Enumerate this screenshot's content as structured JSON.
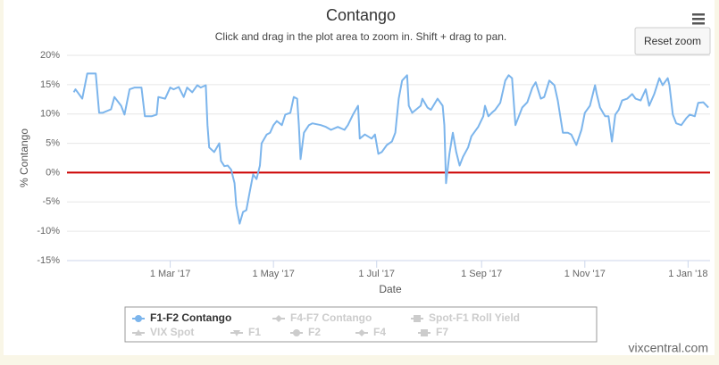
{
  "chart_data": {
    "type": "line",
    "title": "Contango",
    "subtitle": "Click and drag in the plot area to zoom in. Shift + drag to pan.",
    "y_label": "% Contango",
    "x_label": "Date",
    "reset_button": "Reset zoom",
    "credits": "vixcentral.com",
    "grid": true,
    "xlim": [
      "2016-12-30",
      "2018-01-14"
    ],
    "xticks": [
      {
        "value": "2017-03-01",
        "label": "1 Mar '17"
      },
      {
        "value": "2017-05-01",
        "label": "1 May '17"
      },
      {
        "value": "2017-07-01",
        "label": "1 Jul '17"
      },
      {
        "value": "2017-09-01",
        "label": "1 Sep '17"
      },
      {
        "value": "2017-11-01",
        "label": "1 Nov '17"
      },
      {
        "value": "2018-01-01",
        "label": "1 Jan '18"
      }
    ],
    "ylim": [
      -15,
      20
    ],
    "yticks": [
      {
        "value": -15,
        "label": "-15%"
      },
      {
        "value": -10,
        "label": "-10%"
      },
      {
        "value": -5,
        "label": "-5%"
      },
      {
        "value": 0,
        "label": "0%"
      },
      {
        "value": 5,
        "label": "5%"
      },
      {
        "value": 10,
        "label": "10%"
      },
      {
        "value": 15,
        "label": "15%"
      },
      {
        "value": 20,
        "label": "20%"
      }
    ],
    "reference_line": {
      "value": 0,
      "color": "#cc0000"
    },
    "x": [
      "2017-01-03",
      "2017-01-04",
      "2017-01-08",
      "2017-01-11",
      "2017-01-16",
      "2017-01-18",
      "2017-01-20",
      "2017-01-25",
      "2017-01-27",
      "2017-01-31",
      "2017-02-02",
      "2017-02-05",
      "2017-02-08",
      "2017-02-12",
      "2017-02-14",
      "2017-02-18",
      "2017-02-21",
      "2017-02-22",
      "2017-02-26",
      "2017-03-01",
      "2017-03-03",
      "2017-03-06",
      "2017-03-09",
      "2017-03-11",
      "2017-03-14",
      "2017-03-17",
      "2017-03-19",
      "2017-03-22",
      "2017-03-23",
      "2017-03-24",
      "2017-03-27",
      "2017-03-30",
      "2017-03-31",
      "2017-04-02",
      "2017-04-04",
      "2017-04-06",
      "2017-04-08",
      "2017-04-09",
      "2017-04-11",
      "2017-04-13",
      "2017-04-15",
      "2017-04-17",
      "2017-04-19",
      "2017-04-21",
      "2017-04-23",
      "2017-04-24",
      "2017-04-27",
      "2017-04-29",
      "2017-05-01",
      "2017-05-03",
      "2017-05-06",
      "2017-05-08",
      "2017-05-11",
      "2017-05-13",
      "2017-05-15",
      "2017-05-16",
      "2017-05-17",
      "2017-05-19",
      "2017-05-22",
      "2017-05-24",
      "2017-05-29",
      "2017-06-01",
      "2017-06-04",
      "2017-06-08",
      "2017-06-12",
      "2017-06-14",
      "2017-06-17",
      "2017-06-20",
      "2017-06-21",
      "2017-06-24",
      "2017-06-28",
      "2017-06-30",
      "2017-07-02",
      "2017-07-04",
      "2017-07-07",
      "2017-07-10",
      "2017-07-12",
      "2017-07-14",
      "2017-07-16",
      "2017-07-19",
      "2017-07-20",
      "2017-07-22",
      "2017-07-27",
      "2017-07-28",
      "2017-07-31",
      "2017-08-02",
      "2017-08-06",
      "2017-08-09",
      "2017-08-10",
      "2017-08-11",
      "2017-08-13",
      "2017-08-15",
      "2017-08-17",
      "2017-08-19",
      "2017-08-21",
      "2017-08-24",
      "2017-08-26",
      "2017-08-30",
      "2017-09-02",
      "2017-09-03",
      "2017-09-05",
      "2017-09-07",
      "2017-09-09",
      "2017-09-12",
      "2017-09-15",
      "2017-09-17",
      "2017-09-19",
      "2017-09-21",
      "2017-09-23",
      "2017-09-25",
      "2017-09-28",
      "2017-10-01",
      "2017-10-03",
      "2017-10-06",
      "2017-10-08",
      "2017-10-11",
      "2017-10-14",
      "2017-10-16",
      "2017-10-19",
      "2017-10-22",
      "2017-10-24",
      "2017-10-27",
      "2017-10-30",
      "2017-11-01",
      "2017-11-04",
      "2017-11-07",
      "2017-11-08",
      "2017-11-10",
      "2017-11-13",
      "2017-11-15",
      "2017-11-17",
      "2017-11-19",
      "2017-11-21",
      "2017-11-23",
      "2017-11-26",
      "2017-11-29",
      "2017-12-01",
      "2017-12-04",
      "2017-12-07",
      "2017-12-09",
      "2017-12-12",
      "2017-12-15",
      "2017-12-17",
      "2017-12-20",
      "2017-12-21",
      "2017-12-23",
      "2017-12-25",
      "2017-12-28",
      "2017-12-31",
      "2018-01-02",
      "2018-01-05",
      "2018-01-07",
      "2018-01-10",
      "2018-01-13"
    ],
    "series": [
      {
        "name": "F1-F2 Contango",
        "color": "#7cb5ec",
        "values": [
          13.7,
          14.2,
          12.6,
          16.9,
          16.9,
          10.2,
          10.2,
          10.8,
          12.9,
          11.4,
          9.9,
          14.2,
          14.5,
          14.5,
          9.6,
          9.6,
          9.9,
          12.9,
          12.6,
          14.5,
          14.2,
          14.6,
          12.9,
          14.5,
          13.7,
          14.9,
          14.5,
          14.9,
          8.1,
          4.3,
          3.5,
          5.0,
          2.0,
          1.1,
          1.2,
          0.5,
          -1.8,
          -5.6,
          -8.7,
          -6.7,
          -6.4,
          -3.3,
          -0.3,
          -1.1,
          1.2,
          5.0,
          6.5,
          6.8,
          8.1,
          8.8,
          8.1,
          9.9,
          10.2,
          12.9,
          12.6,
          8.1,
          2.3,
          6.8,
          8.1,
          8.4,
          8.1,
          7.8,
          7.3,
          7.8,
          7.3,
          8.1,
          9.9,
          11.4,
          5.8,
          6.5,
          5.8,
          6.5,
          3.2,
          3.5,
          4.7,
          5.3,
          6.8,
          12.6,
          15.7,
          16.6,
          11.4,
          10.2,
          11.4,
          12.6,
          11.1,
          10.7,
          12.6,
          11.4,
          8.1,
          -1.8,
          3.2,
          6.8,
          3.5,
          1.2,
          2.7,
          4.3,
          6.2,
          7.8,
          9.6,
          11.4,
          9.6,
          10.2,
          10.7,
          11.9,
          15.7,
          16.6,
          16.1,
          8.1,
          9.6,
          11.1,
          12.0,
          14.5,
          15.4,
          12.6,
          12.9,
          15.7,
          14.9,
          12.3,
          6.8,
          6.8,
          6.5,
          4.7,
          7.3,
          10.2,
          11.4,
          14.9,
          13.4,
          11.1,
          9.6,
          9.6,
          5.3,
          9.9,
          10.7,
          12.3,
          12.6,
          13.4,
          12.6,
          12.3,
          14.2,
          11.4,
          13.4,
          16.1,
          14.9,
          16.1,
          14.9,
          9.9,
          8.4,
          8.1,
          9.3,
          9.9,
          9.6,
          11.9,
          12.0,
          11.1
        ]
      }
    ],
    "hidden_series": [
      {
        "name": "F4-F7 Contango"
      },
      {
        "name": "Spot-F1 Roll Yield"
      },
      {
        "name": "VIX Spot"
      },
      {
        "name": "F1"
      },
      {
        "name": "F2"
      },
      {
        "name": "F4"
      },
      {
        "name": "F7"
      }
    ]
  }
}
